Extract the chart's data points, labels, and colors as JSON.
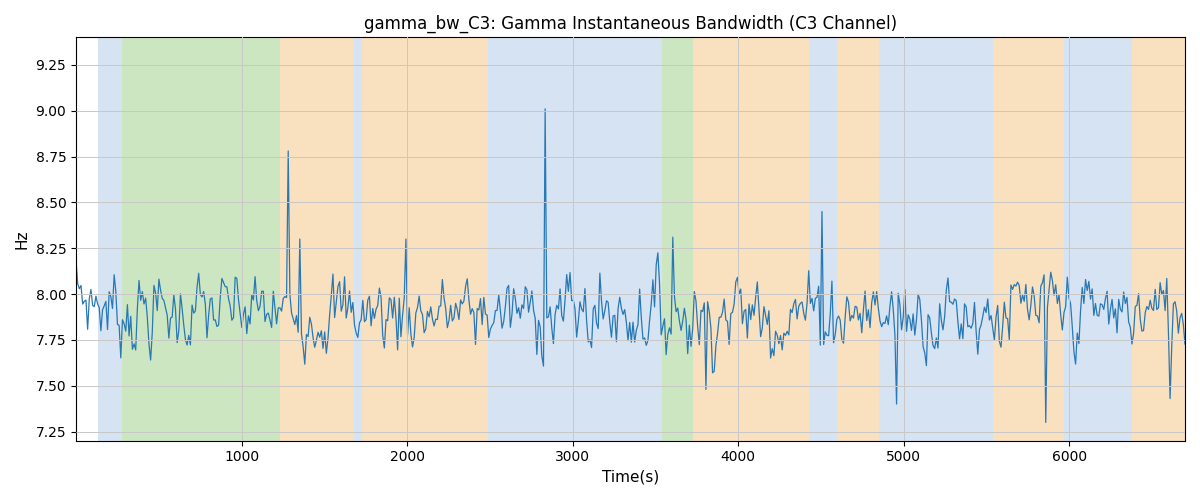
{
  "title": "gamma_bw_C3: Gamma Instantaneous Bandwidth (C3 Channel)",
  "xlabel": "Time(s)",
  "ylabel": "Hz",
  "xlim": [
    0,
    6700
  ],
  "ylim": [
    7.2,
    9.4
  ],
  "yticks": [
    7.25,
    7.5,
    7.75,
    8.0,
    8.25,
    8.5,
    8.75,
    9.0,
    9.25
  ],
  "xticks": [
    1000,
    2000,
    3000,
    4000,
    5000,
    6000
  ],
  "line_color": "#2878b5",
  "line_width": 0.9,
  "background_color": "#ffffff",
  "grid_color": "#c8c8c8",
  "bands": [
    {
      "start": 0,
      "end": 130,
      "color": "#ffffff",
      "alpha": 0.0
    },
    {
      "start": 130,
      "end": 280,
      "color": "#adc9e8",
      "alpha": 0.5
    },
    {
      "start": 280,
      "end": 1230,
      "color": "#90c878",
      "alpha": 0.45
    },
    {
      "start": 1230,
      "end": 1680,
      "color": "#f5c88a",
      "alpha": 0.55
    },
    {
      "start": 1680,
      "end": 1730,
      "color": "#adc9e8",
      "alpha": 0.5
    },
    {
      "start": 1730,
      "end": 2490,
      "color": "#f5c88a",
      "alpha": 0.55
    },
    {
      "start": 2490,
      "end": 2630,
      "color": "#adc9e8",
      "alpha": 0.5
    },
    {
      "start": 2630,
      "end": 3540,
      "color": "#adc9e8",
      "alpha": 0.5
    },
    {
      "start": 3540,
      "end": 3730,
      "color": "#90c878",
      "alpha": 0.45
    },
    {
      "start": 3730,
      "end": 4430,
      "color": "#f5c88a",
      "alpha": 0.55
    },
    {
      "start": 4430,
      "end": 4600,
      "color": "#adc9e8",
      "alpha": 0.5
    },
    {
      "start": 4600,
      "end": 4850,
      "color": "#f5c88a",
      "alpha": 0.55
    },
    {
      "start": 4850,
      "end": 5540,
      "color": "#adc9e8",
      "alpha": 0.5
    },
    {
      "start": 5540,
      "end": 5970,
      "color": "#f5c88a",
      "alpha": 0.55
    },
    {
      "start": 5970,
      "end": 6380,
      "color": "#adc9e8",
      "alpha": 0.5
    },
    {
      "start": 6380,
      "end": 6700,
      "color": "#f5c88a",
      "alpha": 0.55
    }
  ],
  "n_points": 670,
  "signal_mean": 7.9,
  "signal_std": 0.11,
  "seed": 7
}
